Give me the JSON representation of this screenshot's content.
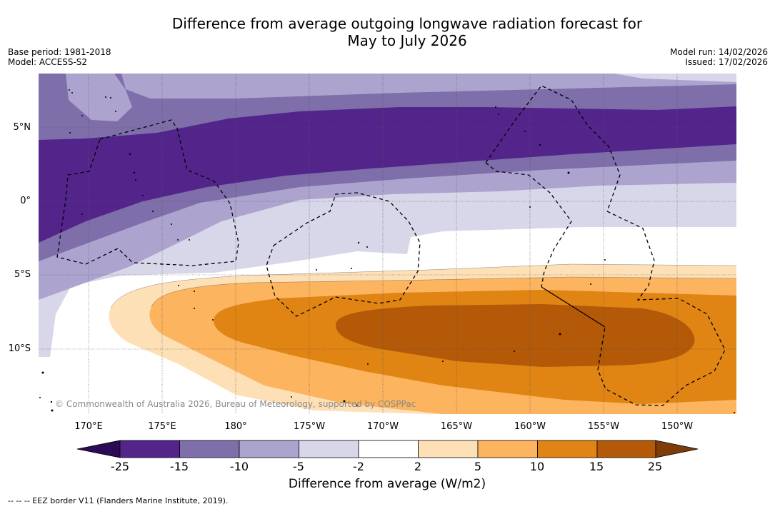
{
  "title_line1": "Difference from average outgoing longwave radiation forecast for",
  "title_line2": "May to July 2026",
  "base_period": "Base period: 1981-2018",
  "model": "Model: ACCESS-S2",
  "model_run": "Model run: 14/02/2026",
  "issued": "Issued: 17/02/2026",
  "copyright": "© Commonwealth of Australia 2026, Bureau of Meteorology, supported by COSPPac",
  "lon_labels": [
    "170°E",
    "175°E",
    "180°",
    "175°W",
    "170°W",
    "165°W",
    "160°W",
    "155°W",
    "150°W"
  ],
  "lat_labels": [
    "5°N",
    "0°",
    "5°S",
    "10°S"
  ],
  "colorbar": {
    "title": "Difference from average (W/m2)",
    "ticks": [
      "-25",
      "-15",
      "-10",
      "-5",
      "-2",
      "2",
      "5",
      "10",
      "15",
      "25"
    ],
    "colors": [
      "#2d0a55",
      "#53258b",
      "#7e6eaa",
      "#aca4cf",
      "#d8d7ea",
      "#ffffff",
      "#fee0b6",
      "#fcb45f",
      "#e08414",
      "#b35908",
      "#7f3b08"
    ]
  },
  "footer": "--  --  -- EEZ border V11 (Flanders Marine Institute, 2019)."
}
